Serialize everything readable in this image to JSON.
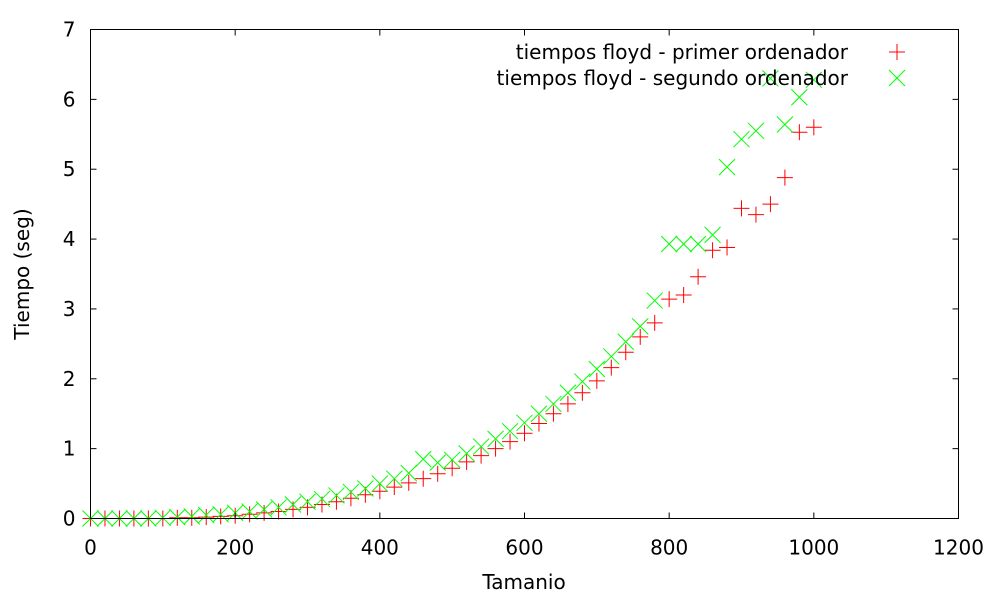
{
  "chart_data": {
    "type": "scatter",
    "title": "",
    "xlabel": "Tamanio",
    "ylabel": "Tiempo (seg)",
    "xlim": [
      0,
      1200
    ],
    "ylim": [
      0,
      7
    ],
    "xticks": [
      0,
      200,
      400,
      600,
      800,
      1000,
      1200
    ],
    "yticks": [
      0,
      1,
      2,
      3,
      4,
      5,
      6,
      7
    ],
    "grid": false,
    "legend_position": "top-right",
    "series": [
      {
        "name": "tiempos floyd - primer ordenador",
        "marker": "plus",
        "color": "#ff0000",
        "x": [
          0,
          20,
          40,
          60,
          80,
          100,
          120,
          140,
          160,
          180,
          200,
          220,
          240,
          260,
          280,
          300,
          320,
          340,
          360,
          380,
          400,
          420,
          440,
          460,
          480,
          500,
          520,
          540,
          560,
          580,
          600,
          620,
          640,
          660,
          680,
          700,
          720,
          740,
          760,
          780,
          800,
          820,
          840,
          860,
          880,
          900,
          920,
          940,
          960,
          980,
          1000
        ],
        "y": [
          0,
          0,
          0,
          0,
          0,
          0,
          0.01,
          0.01,
          0.02,
          0.03,
          0.04,
          0.06,
          0.08,
          0.1,
          0.13,
          0.16,
          0.2,
          0.24,
          0.29,
          0.34,
          0.39,
          0.45,
          0.51,
          0.57,
          0.64,
          0.72,
          0.81,
          0.9,
          1.0,
          1.1,
          1.22,
          1.36,
          1.5,
          1.64,
          1.8,
          1.97,
          2.16,
          2.38,
          2.6,
          2.8,
          3.14,
          3.2,
          3.46,
          3.84,
          3.88,
          4.44,
          4.35,
          4.5,
          4.88,
          5.53,
          5.6
        ]
      },
      {
        "name": "tiempos floyd - segundo ordenador",
        "marker": "cross",
        "color": "#00ff00",
        "x": [
          0,
          20,
          40,
          60,
          80,
          100,
          120,
          140,
          160,
          180,
          200,
          220,
          240,
          260,
          280,
          300,
          320,
          340,
          360,
          380,
          400,
          420,
          440,
          460,
          480,
          500,
          520,
          540,
          560,
          580,
          600,
          620,
          640,
          660,
          680,
          700,
          720,
          740,
          760,
          780,
          800,
          820,
          840,
          860,
          880,
          900,
          920,
          940,
          960,
          980,
          1000
        ],
        "y": [
          0,
          0,
          0,
          0,
          0,
          0.01,
          0.02,
          0.03,
          0.05,
          0.06,
          0.08,
          0.1,
          0.13,
          0.16,
          0.2,
          0.24,
          0.28,
          0.33,
          0.38,
          0.43,
          0.5,
          0.57,
          0.65,
          0.85,
          0.8,
          0.84,
          0.93,
          1.03,
          1.14,
          1.25,
          1.37,
          1.5,
          1.64,
          1.8,
          1.96,
          2.14,
          2.32,
          2.53,
          2.75,
          3.12,
          3.93,
          3.93,
          3.93,
          4.06,
          5.03,
          5.43,
          5.55,
          6.3,
          5.64,
          6.03,
          6.28
        ]
      }
    ]
  }
}
